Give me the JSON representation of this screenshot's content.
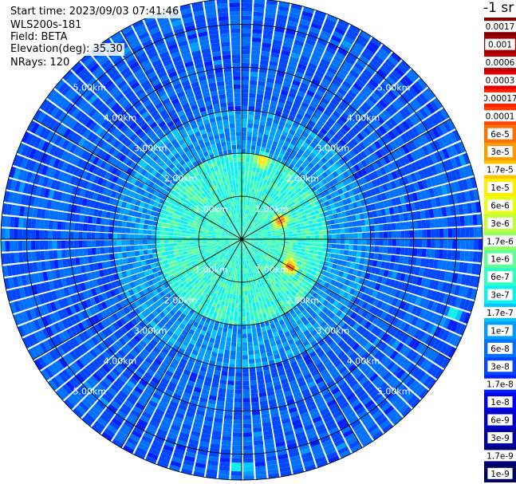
{
  "header": {
    "start_time": "Start time: 2023/09/03 07:41:46",
    "device": "WLS200s-181",
    "field": "Field: BETA",
    "elevation": "Elevation(deg): 35.30",
    "nrays": "NRays: 120"
  },
  "colorbar": {
    "unit": "-1 sr",
    "labels": [
      "0.0017",
      "0.001",
      "0.0006",
      "0.0003",
      "0.00017",
      "0.0001",
      "6e-5",
      "3e-5",
      "1.7e-5",
      "1e-5",
      "6e-6",
      "3e-6",
      "1.7e-6",
      "1e-6",
      "6e-7",
      "3e-7",
      "1.7e-7",
      "1e-7",
      "6e-8",
      "3e-8",
      "1.7e-8",
      "1e-8",
      "6e-9",
      "3e-9",
      "1.7e-9",
      "1e-9"
    ],
    "colors": [
      "#7f0000",
      "#a00000",
      "#c00000",
      "#e00000",
      "#ff2000",
      "#ff4000",
      "#ff7000",
      "#ff9a00",
      "#ffc400",
      "#ffee00",
      "#e6ff15",
      "#c0ff3a",
      "#90ff66",
      "#60ff96",
      "#30ffc6",
      "#10f0ef",
      "#00c8ff",
      "#009cff",
      "#0070ff",
      "#0048ff",
      "#0020ff",
      "#0000f0",
      "#0000c8",
      "#0000a0",
      "#00007c",
      "#000060"
    ]
  },
  "chart_data": {
    "type": "heatmap",
    "projection": "polar (PPI scan)",
    "field": "BETA",
    "unit": "-1 sr",
    "rays": 120,
    "elevation_deg": 35.3,
    "range_rings_km": [
      1,
      2,
      3,
      4,
      5
    ],
    "ring_labels": [
      "1.00km",
      "2.00km",
      "3.00km",
      "4.00km",
      "5.00km"
    ],
    "max_range_km": 5.6,
    "radial_spokes_deg": [
      0,
      30,
      60,
      90,
      120,
      150,
      180,
      210,
      240,
      270,
      300,
      330
    ],
    "background_beta": "3e-8 to 1e-7 beyond 2 km; 1.7e-7 to 1e-6 within 2 km",
    "hotspots": [
      {
        "azimuth_deg": 15,
        "range_km": 1.9,
        "beta": "3e-5"
      },
      {
        "azimuth_deg": 110,
        "range_km": 1.2,
        "beta": "3e-6"
      },
      {
        "azimuth_deg": 65,
        "range_km": 1.0,
        "beta": "0.0003"
      },
      {
        "azimuth_deg": 120,
        "range_km": 1.3,
        "beta": "0.0003"
      },
      {
        "azimuth_deg": 180,
        "range_km": 5.3,
        "beta": "6e-6"
      },
      {
        "azimuth_deg": 110,
        "range_km": 5.2,
        "beta": "1e-6"
      }
    ]
  }
}
